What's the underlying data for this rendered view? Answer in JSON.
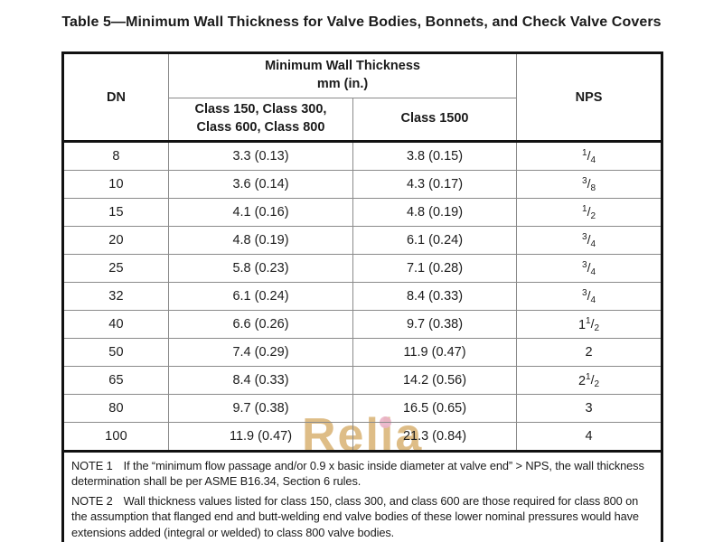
{
  "title": "Table 5—Minimum Wall Thickness for Valve Bodies, Bonnets, and Check Valve Covers",
  "table": {
    "header": {
      "dn": "DN",
      "group_title_line1": "Minimum Wall Thickness",
      "group_title_line2": "mm (in.)",
      "col1_line1": "Class 150, Class 300,",
      "col1_line2": "Class 600, Class 800",
      "col2": "Class 1500",
      "nps": "NPS"
    },
    "rows": [
      {
        "dn": "8",
        "class150_800": "3.3 (0.13)",
        "class1500": "3.8 (0.15)",
        "nps": {
          "whole": "",
          "num": "1",
          "den": "4"
        }
      },
      {
        "dn": "10",
        "class150_800": "3.6 (0.14)",
        "class1500": "4.3 (0.17)",
        "nps": {
          "whole": "",
          "num": "3",
          "den": "8"
        }
      },
      {
        "dn": "15",
        "class150_800": "4.1 (0.16)",
        "class1500": "4.8 (0.19)",
        "nps": {
          "whole": "",
          "num": "1",
          "den": "2"
        }
      },
      {
        "dn": "20",
        "class150_800": "4.8 (0.19)",
        "class1500": "6.1 (0.24)",
        "nps": {
          "whole": "",
          "num": "3",
          "den": "4"
        }
      },
      {
        "dn": "25",
        "class150_800": "5.8 (0.23)",
        "class1500": "7.1 (0.28)",
        "nps": {
          "whole": "",
          "num": "3",
          "den": "4"
        }
      },
      {
        "dn": "32",
        "class150_800": "6.1 (0.24)",
        "class1500": "8.4 (0.33)",
        "nps": {
          "whole": "",
          "num": "3",
          "den": "4"
        }
      },
      {
        "dn": "40",
        "class150_800": "6.6 (0.26)",
        "class1500": "9.7 (0.38)",
        "nps": {
          "whole": "1",
          "num": "1",
          "den": "2"
        }
      },
      {
        "dn": "50",
        "class150_800": "7.4 (0.29)",
        "class1500": "11.9 (0.47)",
        "nps": {
          "whole": "2",
          "num": "",
          "den": ""
        }
      },
      {
        "dn": "65",
        "class150_800": "8.4 (0.33)",
        "class1500": "14.2 (0.56)",
        "nps": {
          "whole": "2",
          "num": "1",
          "den": "2"
        }
      },
      {
        "dn": "80",
        "class150_800": "9.7 (0.38)",
        "class1500": "16.5 (0.65)",
        "nps": {
          "whole": "3",
          "num": "",
          "den": ""
        }
      },
      {
        "dn": "100",
        "class150_800": "11.9 (0.47)",
        "class1500": "21.3 (0.84)",
        "nps": {
          "whole": "4",
          "num": "",
          "den": ""
        }
      }
    ],
    "notes": [
      {
        "label": "NOTE 1",
        "text": "If the “minimum flow passage and/or 0.9 x basic inside diameter at valve end” > NPS, the wall thickness determination shall be per ASME B16.34, Section 6 rules."
      },
      {
        "label": "NOTE 2",
        "text": "Wall thickness values listed for class 150, class 300, and class 600 are those required for class 800 on the assumption that flanged end and butt-welding end valve bodies of these lower nominal pressures would have extensions added (integral or welded) to class 800 valve bodies."
      }
    ]
  },
  "watermark": {
    "text": "Relia",
    "text_color": "#d9b273",
    "dot_color": "#eab3c8"
  }
}
